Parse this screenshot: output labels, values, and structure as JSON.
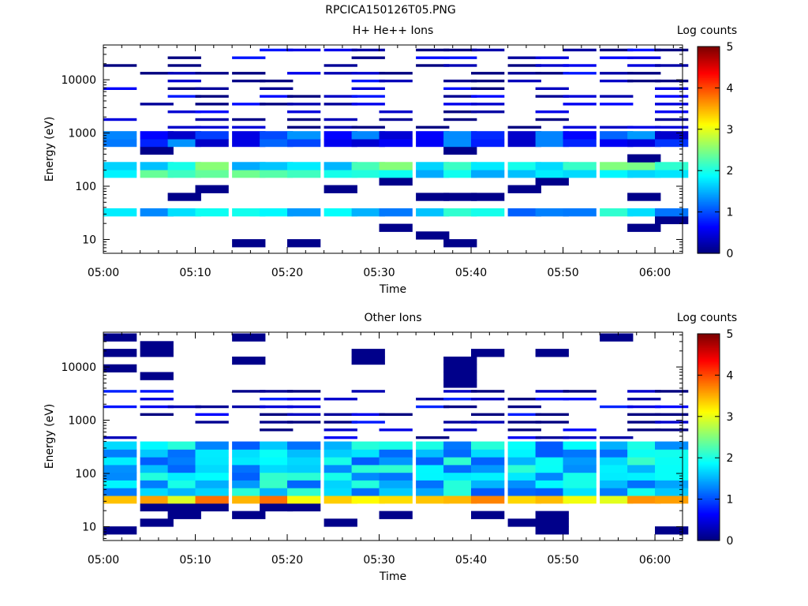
{
  "page": {
    "title": "RPCICA150126T05.PNG"
  },
  "chart_data": [
    {
      "type": "heatmap",
      "title": "H+ He++ Ions",
      "xlabel": "Time",
      "ylabel": "Energy (eV)",
      "yscale": "log",
      "xlim": [
        "05:00",
        "06:03"
      ],
      "ylim": [
        5.5,
        45000
      ],
      "xticks": [
        "05:00",
        "05:10",
        "05:20",
        "05:30",
        "05:40",
        "05:50",
        "06:00"
      ],
      "yticks": [
        "10",
        "100",
        "1000",
        "10000"
      ],
      "colorbar": {
        "label": "Log counts",
        "range": [
          0,
          5
        ],
        "ticks": [
          "0",
          "1",
          "2",
          "3",
          "4",
          "5"
        ],
        "colormap": "jet"
      },
      "time_bins": [
        "05:00",
        "05:04",
        "05:07",
        "05:10",
        "05:14",
        "05:17",
        "05:20",
        "05:24",
        "05:27",
        "05:30",
        "05:34",
        "05:37",
        "05:40",
        "05:44",
        "05:47",
        "05:50",
        "05:54",
        "05:57",
        "06:00"
      ],
      "bands": [
        {
          "e_low": 27,
          "e_high": 37,
          "level": 1.6
        },
        {
          "e_low": 140,
          "e_high": 330,
          "level": 2.0
        },
        {
          "e_low": 600,
          "e_high": 1000,
          "level": 0.9
        },
        {
          "e_low": 1000,
          "e_high": 42000,
          "level": 0.2
        }
      ],
      "grid": false,
      "legend": "none"
    },
    {
      "type": "heatmap",
      "title": "Other Ions",
      "xlabel": "Time",
      "ylabel": "Energy (eV)",
      "yscale": "log",
      "xlim": [
        "05:00",
        "06:03"
      ],
      "ylim": [
        5.5,
        45000
      ],
      "xticks": [
        "05:00",
        "05:10",
        "05:20",
        "05:30",
        "05:40",
        "05:50",
        "06:00"
      ],
      "yticks": [
        "10",
        "100",
        "1000",
        "10000"
      ],
      "colorbar": {
        "label": "Log counts",
        "range": [
          0,
          5
        ],
        "ticks": [
          "0",
          "1",
          "2",
          "3",
          "4",
          "5"
        ],
        "colormap": "jet"
      },
      "time_bins": [
        "05:00",
        "05:04",
        "05:07",
        "05:10",
        "05:14",
        "05:17",
        "05:20",
        "05:24",
        "05:27",
        "05:30",
        "05:34",
        "05:37",
        "05:40",
        "05:44",
        "05:47",
        "05:50",
        "05:54",
        "05:57",
        "06:00"
      ],
      "bands": [
        {
          "e_low": 24,
          "e_high": 29,
          "level": 2.0
        },
        {
          "e_low": 30,
          "e_high": 40,
          "level": 3.4
        },
        {
          "e_low": 40,
          "e_high": 440,
          "level": 1.6
        },
        {
          "e_low": 440,
          "e_high": 3700,
          "level": 0.3
        }
      ],
      "grid": false,
      "legend": "none"
    }
  ]
}
